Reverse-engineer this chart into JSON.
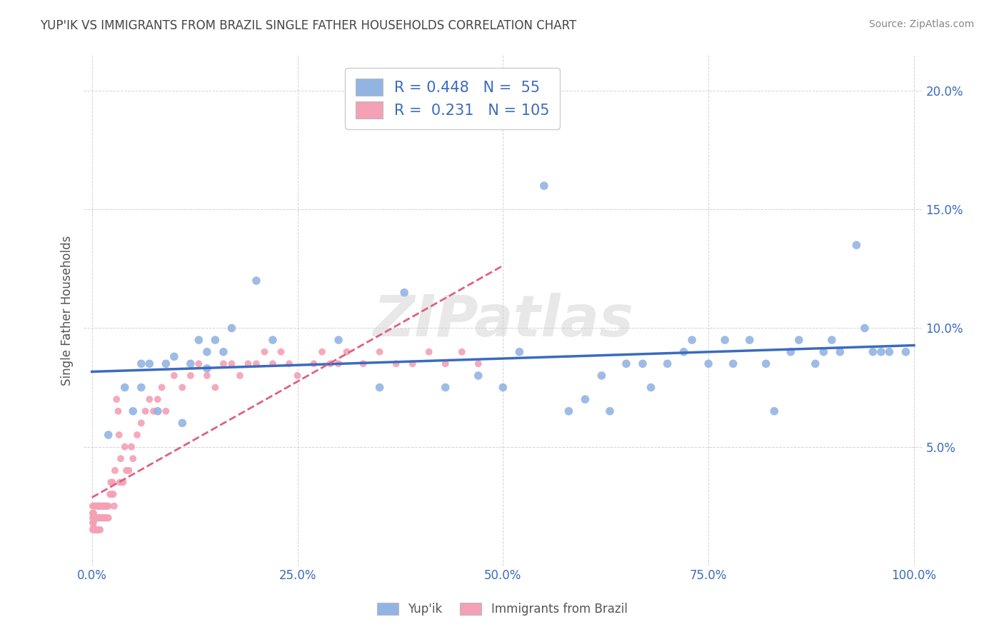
{
  "title": "YUP'IK VS IMMIGRANTS FROM BRAZIL SINGLE FATHER HOUSEHOLDS CORRELATION CHART",
  "source": "Source: ZipAtlas.com",
  "ylabel": "Single Father Households",
  "watermark": "ZIPatlas",
  "blue_R": 0.448,
  "blue_N": 55,
  "pink_R": 0.231,
  "pink_N": 105,
  "blue_color": "#92b4e3",
  "pink_color": "#f4a0b5",
  "blue_line_color": "#3a6bbf",
  "pink_line_color": "#e06080",
  "background_color": "#ffffff",
  "grid_color": "#c8c8c8",
  "title_color": "#444444",
  "legend_text_color": "#3a6bbf",
  "blue_x": [
    0.02,
    0.04,
    0.05,
    0.06,
    0.06,
    0.07,
    0.08,
    0.09,
    0.1,
    0.11,
    0.12,
    0.13,
    0.14,
    0.14,
    0.15,
    0.16,
    0.17,
    0.2,
    0.22,
    0.3,
    0.35,
    0.38,
    0.43,
    0.47,
    0.5,
    0.52,
    0.55,
    0.58,
    0.6,
    0.62,
    0.63,
    0.65,
    0.67,
    0.68,
    0.7,
    0.72,
    0.73,
    0.75,
    0.77,
    0.78,
    0.8,
    0.82,
    0.83,
    0.85,
    0.86,
    0.88,
    0.89,
    0.9,
    0.91,
    0.93,
    0.94,
    0.95,
    0.96,
    0.97,
    0.99
  ],
  "blue_y": [
    0.055,
    0.075,
    0.065,
    0.085,
    0.075,
    0.085,
    0.065,
    0.085,
    0.088,
    0.06,
    0.085,
    0.095,
    0.083,
    0.09,
    0.095,
    0.09,
    0.1,
    0.12,
    0.095,
    0.095,
    0.075,
    0.115,
    0.075,
    0.08,
    0.075,
    0.09,
    0.16,
    0.065,
    0.07,
    0.08,
    0.065,
    0.085,
    0.085,
    0.075,
    0.085,
    0.09,
    0.095,
    0.085,
    0.095,
    0.085,
    0.095,
    0.085,
    0.065,
    0.09,
    0.095,
    0.085,
    0.09,
    0.095,
    0.09,
    0.135,
    0.1,
    0.09,
    0.09,
    0.09,
    0.09
  ],
  "pink_x": [
    0.001,
    0.001,
    0.001,
    0.001,
    0.001,
    0.002,
    0.002,
    0.002,
    0.003,
    0.003,
    0.003,
    0.004,
    0.004,
    0.004,
    0.005,
    0.005,
    0.005,
    0.006,
    0.006,
    0.006,
    0.007,
    0.007,
    0.007,
    0.008,
    0.008,
    0.008,
    0.009,
    0.009,
    0.01,
    0.01,
    0.01,
    0.011,
    0.011,
    0.012,
    0.012,
    0.013,
    0.013,
    0.014,
    0.014,
    0.015,
    0.015,
    0.016,
    0.016,
    0.017,
    0.017,
    0.018,
    0.018,
    0.019,
    0.02,
    0.02,
    0.022,
    0.023,
    0.024,
    0.025,
    0.026,
    0.027,
    0.028,
    0.03,
    0.032,
    0.033,
    0.034,
    0.035,
    0.038,
    0.04,
    0.042,
    0.045,
    0.048,
    0.05,
    0.055,
    0.06,
    0.065,
    0.07,
    0.075,
    0.08,
    0.085,
    0.09,
    0.1,
    0.11,
    0.12,
    0.13,
    0.14,
    0.15,
    0.16,
    0.17,
    0.18,
    0.19,
    0.2,
    0.21,
    0.22,
    0.23,
    0.24,
    0.25,
    0.27,
    0.28,
    0.29,
    0.3,
    0.31,
    0.33,
    0.35,
    0.37,
    0.39,
    0.41,
    0.43,
    0.45,
    0.47
  ],
  "pink_y": [
    0.018,
    0.022,
    0.015,
    0.025,
    0.02,
    0.018,
    0.022,
    0.016,
    0.02,
    0.025,
    0.015,
    0.02,
    0.025,
    0.015,
    0.02,
    0.025,
    0.015,
    0.02,
    0.025,
    0.015,
    0.02,
    0.025,
    0.015,
    0.02,
    0.025,
    0.015,
    0.02,
    0.025,
    0.02,
    0.025,
    0.015,
    0.02,
    0.025,
    0.02,
    0.025,
    0.02,
    0.025,
    0.02,
    0.025,
    0.02,
    0.025,
    0.02,
    0.025,
    0.02,
    0.025,
    0.02,
    0.025,
    0.02,
    0.025,
    0.02,
    0.03,
    0.035,
    0.03,
    0.035,
    0.03,
    0.025,
    0.04,
    0.07,
    0.065,
    0.055,
    0.035,
    0.045,
    0.035,
    0.05,
    0.04,
    0.04,
    0.05,
    0.045,
    0.055,
    0.06,
    0.065,
    0.07,
    0.065,
    0.07,
    0.075,
    0.065,
    0.08,
    0.075,
    0.08,
    0.085,
    0.08,
    0.075,
    0.085,
    0.085,
    0.08,
    0.085,
    0.085,
    0.09,
    0.085,
    0.09,
    0.085,
    0.08,
    0.085,
    0.09,
    0.085,
    0.085,
    0.09,
    0.085,
    0.09,
    0.085,
    0.085,
    0.09,
    0.085,
    0.09,
    0.085
  ],
  "xlim": [
    -0.01,
    1.01
  ],
  "ylim": [
    0.0,
    0.215
  ],
  "xticks": [
    0.0,
    0.25,
    0.5,
    0.75,
    1.0
  ],
  "xtick_labels": [
    "0.0%",
    "25.0%",
    "50.0%",
    "75.0%",
    "100.0%"
  ],
  "yticks": [
    0.05,
    0.1,
    0.15,
    0.2
  ],
  "ytick_labels": [
    "5.0%",
    "10.0%",
    "15.0%",
    "20.0%"
  ]
}
